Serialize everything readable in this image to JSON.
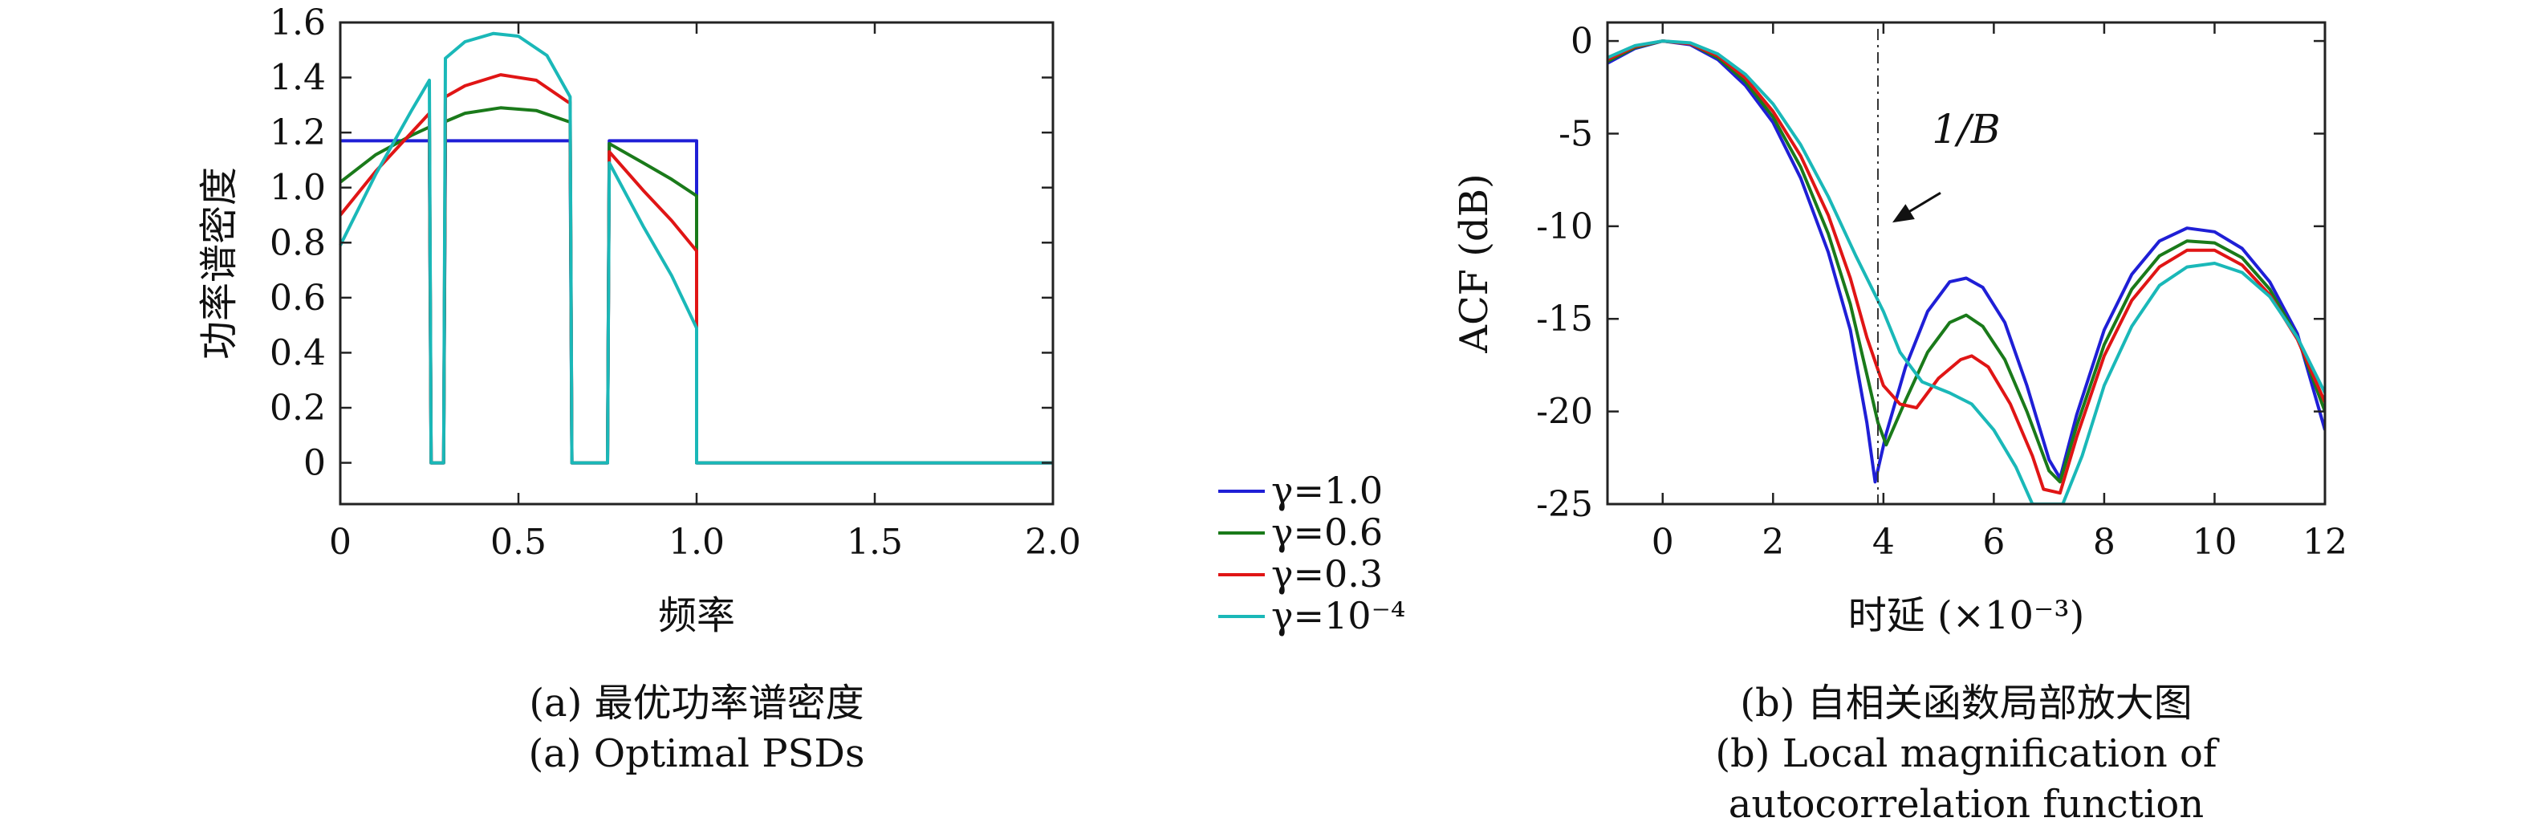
{
  "colors": {
    "gamma_1_0": "#1f1fd6",
    "gamma_0_6": "#1a7a1a",
    "gamma_0_3": "#e01515",
    "gamma_1e_4": "#1ab8b8",
    "axis": "#222222"
  },
  "legend": {
    "placement": "between-panels",
    "entries": [
      "γ=1.0",
      "γ=0.6",
      "γ=0.3",
      "γ=10⁻⁴"
    ]
  },
  "captions": {
    "a_cn": "(a) 最优功率谱密度",
    "a_en": "(a) Optimal PSDs",
    "b_cn": "(b) 自相关函数局部放大图",
    "b_en_1": "(b) Local magnification of",
    "b_en_2": "autocorrelation function"
  },
  "annotation": {
    "text": "1/B",
    "x": 3.9
  },
  "chart_data": [
    {
      "id": "a",
      "type": "line",
      "xlabel": "频率",
      "ylabel": "功率谱密度",
      "xlim": [
        0,
        2.0
      ],
      "ylim": [
        -0.15,
        1.6
      ],
      "xticks": [
        0,
        0.5,
        1.0,
        1.5,
        2.0
      ],
      "xtick_labels": [
        "0",
        "0.5",
        "1.0",
        "1.5",
        "2.0"
      ],
      "yticks": [
        0,
        0.2,
        0.4,
        0.6,
        0.8,
        1.0,
        1.2,
        1.4,
        1.6
      ],
      "ytick_labels": [
        "0",
        "0.2",
        "0.4",
        "0.6",
        "0.8",
        "1.0",
        "1.2",
        "1.4",
        "1.6"
      ],
      "grid": false,
      "series": [
        {
          "name": "γ=1.0",
          "color_key": "gamma_1_0",
          "points": [
            [
              0,
              1.17
            ],
            [
              0.25,
              1.17
            ],
            [
              0.255,
              0
            ],
            [
              0.29,
              0
            ],
            [
              0.295,
              1.17
            ],
            [
              0.645,
              1.17
            ],
            [
              0.65,
              0
            ],
            [
              0.75,
              0
            ],
            [
              0.755,
              1.17
            ],
            [
              1.0,
              1.17
            ],
            [
              1.0,
              0
            ],
            [
              2.0,
              0
            ]
          ]
        },
        {
          "name": "γ=0.6",
          "color_key": "gamma_0_6",
          "points": [
            [
              0,
              1.02
            ],
            [
              0.1,
              1.12
            ],
            [
              0.2,
              1.19
            ],
            [
              0.25,
              1.22
            ],
            [
              0.255,
              0
            ],
            [
              0.29,
              0
            ],
            [
              0.295,
              1.24
            ],
            [
              0.35,
              1.27
            ],
            [
              0.45,
              1.29
            ],
            [
              0.55,
              1.28
            ],
            [
              0.64,
              1.24
            ],
            [
              0.645,
              1.24
            ],
            [
              0.65,
              0
            ],
            [
              0.75,
              0
            ],
            [
              0.755,
              1.16
            ],
            [
              0.85,
              1.09
            ],
            [
              0.93,
              1.03
            ],
            [
              1.0,
              0.97
            ],
            [
              1.0,
              0
            ],
            [
              2.0,
              0
            ]
          ]
        },
        {
          "name": "γ=0.3",
          "color_key": "gamma_0_3",
          "points": [
            [
              0,
              0.9
            ],
            [
              0.1,
              1.06
            ],
            [
              0.2,
              1.2
            ],
            [
              0.25,
              1.27
            ],
            [
              0.255,
              0
            ],
            [
              0.29,
              0
            ],
            [
              0.295,
              1.33
            ],
            [
              0.35,
              1.37
            ],
            [
              0.45,
              1.41
            ],
            [
              0.55,
              1.39
            ],
            [
              0.64,
              1.31
            ],
            [
              0.645,
              1.31
            ],
            [
              0.65,
              0
            ],
            [
              0.75,
              0
            ],
            [
              0.755,
              1.13
            ],
            [
              0.85,
              0.99
            ],
            [
              0.93,
              0.88
            ],
            [
              1.0,
              0.77
            ],
            [
              1.0,
              0
            ],
            [
              2.0,
              0
            ]
          ]
        },
        {
          "name": "γ=10⁻⁴",
          "color_key": "gamma_1e_4",
          "points": [
            [
              0,
              0.79
            ],
            [
              0.1,
              1.05
            ],
            [
              0.2,
              1.28
            ],
            [
              0.25,
              1.39
            ],
            [
              0.255,
              0
            ],
            [
              0.29,
              0
            ],
            [
              0.295,
              1.47
            ],
            [
              0.35,
              1.53
            ],
            [
              0.43,
              1.56
            ],
            [
              0.5,
              1.55
            ],
            [
              0.58,
              1.48
            ],
            [
              0.645,
              1.33
            ],
            [
              0.65,
              0
            ],
            [
              0.75,
              0
            ],
            [
              0.755,
              1.09
            ],
            [
              0.85,
              0.86
            ],
            [
              0.93,
              0.68
            ],
            [
              1.0,
              0.49
            ],
            [
              1.0,
              0
            ],
            [
              2.0,
              0
            ]
          ]
        }
      ]
    },
    {
      "id": "b",
      "type": "line",
      "xlabel": "时延 (×10⁻³)",
      "ylabel": "ACF (dB)",
      "xlim": [
        -1,
        12
      ],
      "ylim": [
        -25,
        1
      ],
      "xticks": [
        0,
        2,
        4,
        6,
        8,
        10,
        12
      ],
      "xtick_labels": [
        "0",
        "2",
        "4",
        "6",
        "8",
        "10",
        "12"
      ],
      "yticks": [
        0,
        -5,
        -10,
        -15,
        -20,
        -25
      ],
      "ytick_labels": [
        "0",
        "-5",
        "-10",
        "-15",
        "-20",
        "-25"
      ],
      "grid": false,
      "series": [
        {
          "name": "γ=1.0",
          "color_key": "gamma_1_0",
          "points": [
            [
              -1,
              -1.2
            ],
            [
              -0.5,
              -0.4
            ],
            [
              0,
              0
            ],
            [
              0.5,
              -0.2
            ],
            [
              1,
              -1.0
            ],
            [
              1.5,
              -2.4
            ],
            [
              2,
              -4.4
            ],
            [
              2.5,
              -7.4
            ],
            [
              3,
              -11.4
            ],
            [
              3.4,
              -15.6
            ],
            [
              3.7,
              -20.6
            ],
            [
              3.85,
              -23.8
            ],
            [
              4.05,
              -21.2
            ],
            [
              4.4,
              -17.6
            ],
            [
              4.8,
              -14.6
            ],
            [
              5.2,
              -13.0
            ],
            [
              5.5,
              -12.8
            ],
            [
              5.8,
              -13.3
            ],
            [
              6.2,
              -15.2
            ],
            [
              6.6,
              -18.6
            ],
            [
              7.0,
              -22.6
            ],
            [
              7.2,
              -23.6
            ],
            [
              7.5,
              -20.2
            ],
            [
              8,
              -15.6
            ],
            [
              8.5,
              -12.6
            ],
            [
              9,
              -10.8
            ],
            [
              9.5,
              -10.1
            ],
            [
              10,
              -10.3
            ],
            [
              10.5,
              -11.2
            ],
            [
              11,
              -13.0
            ],
            [
              11.5,
              -15.8
            ],
            [
              12,
              -21.0
            ]
          ]
        },
        {
          "name": "γ=0.6",
          "color_key": "gamma_0_6",
          "points": [
            [
              -1,
              -1.1
            ],
            [
              -0.5,
              -0.35
            ],
            [
              0,
              0
            ],
            [
              0.5,
              -0.15
            ],
            [
              1,
              -0.9
            ],
            [
              1.5,
              -2.2
            ],
            [
              2,
              -4.1
            ],
            [
              2.5,
              -6.8
            ],
            [
              3,
              -10.4
            ],
            [
              3.4,
              -14.2
            ],
            [
              3.7,
              -18.0
            ],
            [
              3.9,
              -20.6
            ],
            [
              4.05,
              -21.8
            ],
            [
              4.4,
              -19.4
            ],
            [
              4.8,
              -16.8
            ],
            [
              5.2,
              -15.2
            ],
            [
              5.5,
              -14.8
            ],
            [
              5.8,
              -15.4
            ],
            [
              6.2,
              -17.2
            ],
            [
              6.6,
              -20.0
            ],
            [
              7.0,
              -23.2
            ],
            [
              7.2,
              -23.8
            ],
            [
              7.5,
              -20.8
            ],
            [
              8,
              -16.4
            ],
            [
              8.5,
              -13.4
            ],
            [
              9,
              -11.6
            ],
            [
              9.5,
              -10.8
            ],
            [
              10,
              -10.9
            ],
            [
              10.5,
              -11.7
            ],
            [
              11,
              -13.4
            ],
            [
              11.5,
              -16.0
            ],
            [
              12,
              -20.0
            ]
          ]
        },
        {
          "name": "γ=0.3",
          "color_key": "gamma_0_3",
          "points": [
            [
              -1,
              -1.0
            ],
            [
              -0.5,
              -0.3
            ],
            [
              0,
              0
            ],
            [
              0.5,
              -0.15
            ],
            [
              1,
              -0.8
            ],
            [
              1.5,
              -2.0
            ],
            [
              2,
              -3.8
            ],
            [
              2.5,
              -6.2
            ],
            [
              3,
              -9.4
            ],
            [
              3.4,
              -12.8
            ],
            [
              3.7,
              -16.0
            ],
            [
              4.0,
              -18.6
            ],
            [
              4.3,
              -19.6
            ],
            [
              4.6,
              -19.8
            ],
            [
              5.0,
              -18.2
            ],
            [
              5.4,
              -17.2
            ],
            [
              5.6,
              -17.0
            ],
            [
              5.9,
              -17.6
            ],
            [
              6.3,
              -19.6
            ],
            [
              6.7,
              -22.4
            ],
            [
              6.9,
              -24.2
            ],
            [
              7.2,
              -24.4
            ],
            [
              7.5,
              -21.4
            ],
            [
              8,
              -17.0
            ],
            [
              8.5,
              -14.0
            ],
            [
              9,
              -12.2
            ],
            [
              9.5,
              -11.3
            ],
            [
              10,
              -11.3
            ],
            [
              10.5,
              -12.1
            ],
            [
              11,
              -13.7
            ],
            [
              11.5,
              -16.1
            ],
            [
              12,
              -19.5
            ]
          ]
        },
        {
          "name": "γ=10⁻⁴",
          "color_key": "gamma_1e_4",
          "points": [
            [
              -1,
              -0.9
            ],
            [
              -0.5,
              -0.25
            ],
            [
              0,
              0
            ],
            [
              0.5,
              -0.1
            ],
            [
              1,
              -0.7
            ],
            [
              1.5,
              -1.8
            ],
            [
              2,
              -3.4
            ],
            [
              2.5,
              -5.6
            ],
            [
              3,
              -8.4
            ],
            [
              3.5,
              -11.6
            ],
            [
              4,
              -14.6
            ],
            [
              4.3,
              -16.8
            ],
            [
              4.7,
              -18.4
            ],
            [
              5.2,
              -19.0
            ],
            [
              5.6,
              -19.6
            ],
            [
              6.0,
              -21.0
            ],
            [
              6.4,
              -23.0
            ],
            [
              6.7,
              -25.0
            ],
            [
              7.25,
              -25.0
            ],
            [
              7.6,
              -22.4
            ],
            [
              8,
              -18.6
            ],
            [
              8.5,
              -15.4
            ],
            [
              9,
              -13.2
            ],
            [
              9.5,
              -12.2
            ],
            [
              10,
              -12.0
            ],
            [
              10.5,
              -12.5
            ],
            [
              11,
              -13.8
            ],
            [
              11.5,
              -16.0
            ],
            [
              12,
              -19.0
            ]
          ]
        }
      ]
    }
  ]
}
